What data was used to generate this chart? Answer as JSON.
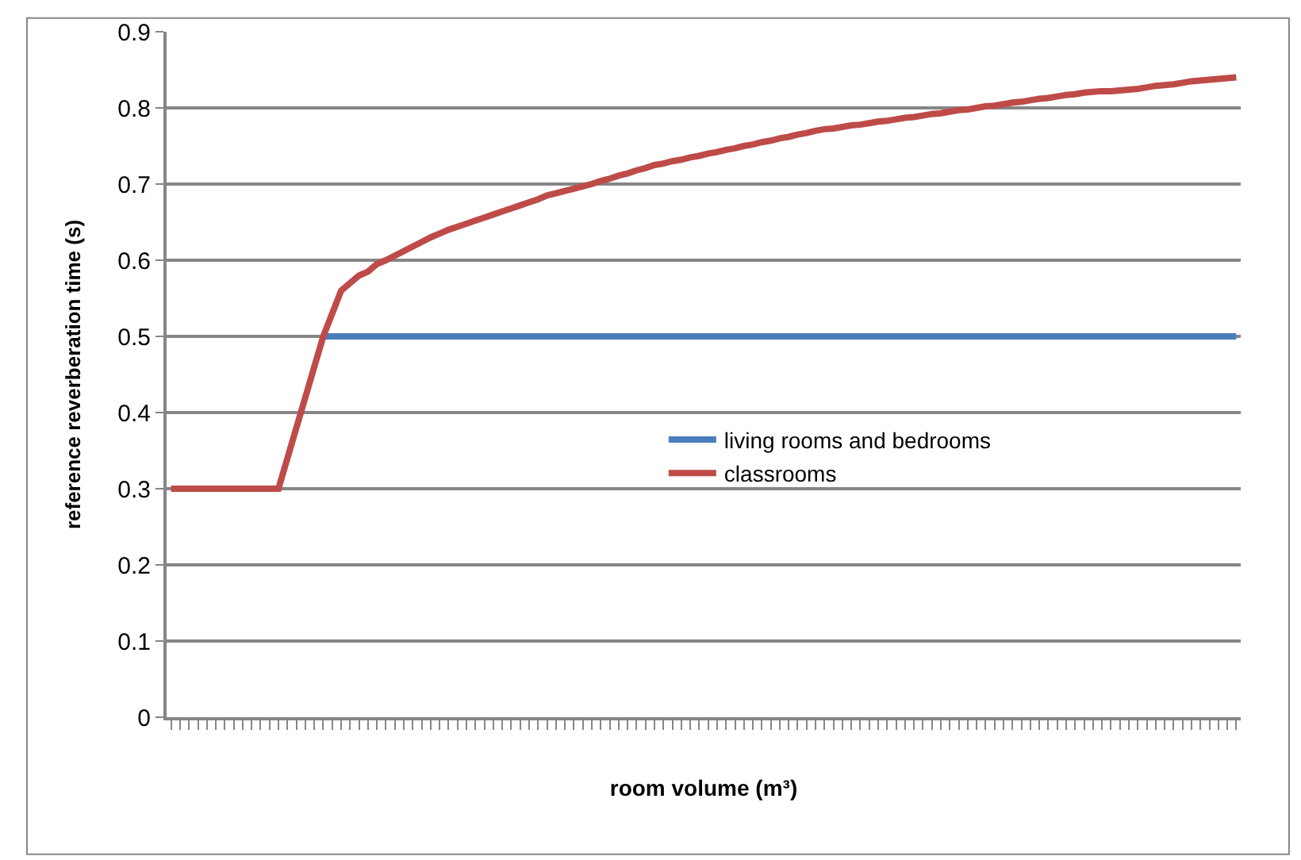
{
  "chart_data": {
    "type": "line",
    "xlabel": "room volume (m³)",
    "ylabel": "reference reverberation time (s)",
    "categories": [
      null,
      null,
      null,
      null,
      null,
      null,
      null,
      null,
      null,
      null,
      null,
      null,
      null,
      null,
      null,
      null,
      null,
      null,
      null,
      null,
      null,
      null,
      null,
      null,
      null,
      null,
      null,
      null,
      null,
      null,
      null,
      null,
      null,
      null,
      null,
      null,
      null,
      null,
      null,
      null,
      null,
      null,
      null,
      null,
      null,
      null,
      null,
      null,
      null,
      null,
      null,
      null,
      null,
      null,
      null,
      null,
      null,
      null,
      null,
      null,
      null,
      null,
      null,
      null,
      null,
      null,
      null,
      null,
      null,
      null,
      null,
      null,
      null,
      null,
      null,
      null,
      null,
      null,
      null,
      null,
      null,
      null,
      null,
      null,
      null,
      null,
      null,
      null,
      null,
      null,
      null,
      null,
      null,
      null,
      null,
      null,
      null,
      null,
      null,
      null,
      null,
      null,
      null,
      null,
      null,
      null,
      null,
      null,
      null,
      null,
      null,
      null,
      null,
      null,
      null,
      null,
      null,
      null,
      null,
      null
    ],
    "series": [
      {
        "name": "living rooms and bedrooms",
        "color": "#4a7ebb",
        "values": [
          null,
          null,
          null,
          null,
          null,
          null,
          null,
          null,
          null,
          null,
          null,
          null,
          null,
          null,
          null,
          null,
          null,
          0.5,
          0.5,
          0.5,
          0.5,
          0.5,
          0.5,
          0.5,
          0.5,
          0.5,
          0.5,
          0.5,
          0.5,
          0.5,
          0.5,
          0.5,
          0.5,
          0.5,
          0.5,
          0.5,
          0.5,
          0.5,
          0.5,
          0.5,
          0.5,
          0.5,
          0.5,
          0.5,
          0.5,
          0.5,
          0.5,
          0.5,
          0.5,
          0.5,
          0.5,
          0.5,
          0.5,
          0.5,
          0.5,
          0.5,
          0.5,
          0.5,
          0.5,
          0.5,
          0.5,
          0.5,
          0.5,
          0.5,
          0.5,
          0.5,
          0.5,
          0.5,
          0.5,
          0.5,
          0.5,
          0.5,
          0.5,
          0.5,
          0.5,
          0.5,
          0.5,
          0.5,
          0.5,
          0.5,
          0.5,
          0.5,
          0.5,
          0.5,
          0.5,
          0.5,
          0.5,
          0.5,
          0.5,
          0.5,
          0.5,
          0.5,
          0.5,
          0.5,
          0.5,
          0.5,
          0.5,
          0.5,
          0.5,
          0.5,
          0.5,
          0.5,
          0.5,
          0.5,
          0.5,
          0.5,
          0.5,
          0.5,
          0.5,
          0.5,
          0.5,
          0.5,
          0.5,
          0.5,
          0.5,
          0.5,
          0.5,
          0.5,
          0.5,
          0.5
        ]
      },
      {
        "name": "classrooms",
        "color": "#be4b48",
        "values": [
          0.3,
          0.3,
          0.3,
          0.3,
          0.3,
          0.3,
          0.3,
          0.3,
          0.3,
          0.3,
          0.3,
          0.3,
          0.3,
          0.34,
          0.38,
          0.42,
          0.46,
          0.5,
          0.53,
          0.56,
          0.57,
          0.58,
          0.585,
          0.595,
          0.6,
          0.606,
          0.612,
          0.618,
          0.624,
          0.63,
          0.635,
          0.64,
          0.644,
          0.648,
          0.652,
          0.656,
          0.66,
          0.664,
          0.668,
          0.672,
          0.676,
          0.68,
          0.685,
          0.688,
          0.691,
          0.694,
          0.697,
          0.7,
          0.704,
          0.707,
          0.711,
          0.714,
          0.718,
          0.721,
          0.725,
          0.727,
          0.73,
          0.732,
          0.735,
          0.737,
          0.74,
          0.742,
          0.745,
          0.747,
          0.75,
          0.752,
          0.755,
          0.757,
          0.76,
          0.762,
          0.765,
          0.767,
          0.77,
          0.772,
          0.773,
          0.775,
          0.777,
          0.778,
          0.78,
          0.782,
          0.783,
          0.785,
          0.787,
          0.788,
          0.79,
          0.792,
          0.793,
          0.795,
          0.797,
          0.798,
          0.8,
          0.802,
          0.803,
          0.805,
          0.807,
          0.808,
          0.81,
          0.812,
          0.813,
          0.815,
          0.817,
          0.818,
          0.82,
          0.821,
          0.822,
          0.822,
          0.823,
          0.824,
          0.825,
          0.827,
          0.829,
          0.83,
          0.831,
          0.833,
          0.835,
          0.836,
          0.837,
          0.838,
          0.839,
          0.84
        ]
      }
    ],
    "ylim": [
      0,
      0.9
    ],
    "yticks": [
      0,
      0.1,
      0.2,
      0.3,
      0.4,
      0.5,
      0.6,
      0.7,
      0.8,
      0.9
    ],
    "grid": "y",
    "legend": "center",
    "marker": "none",
    "line_style": "solid"
  }
}
